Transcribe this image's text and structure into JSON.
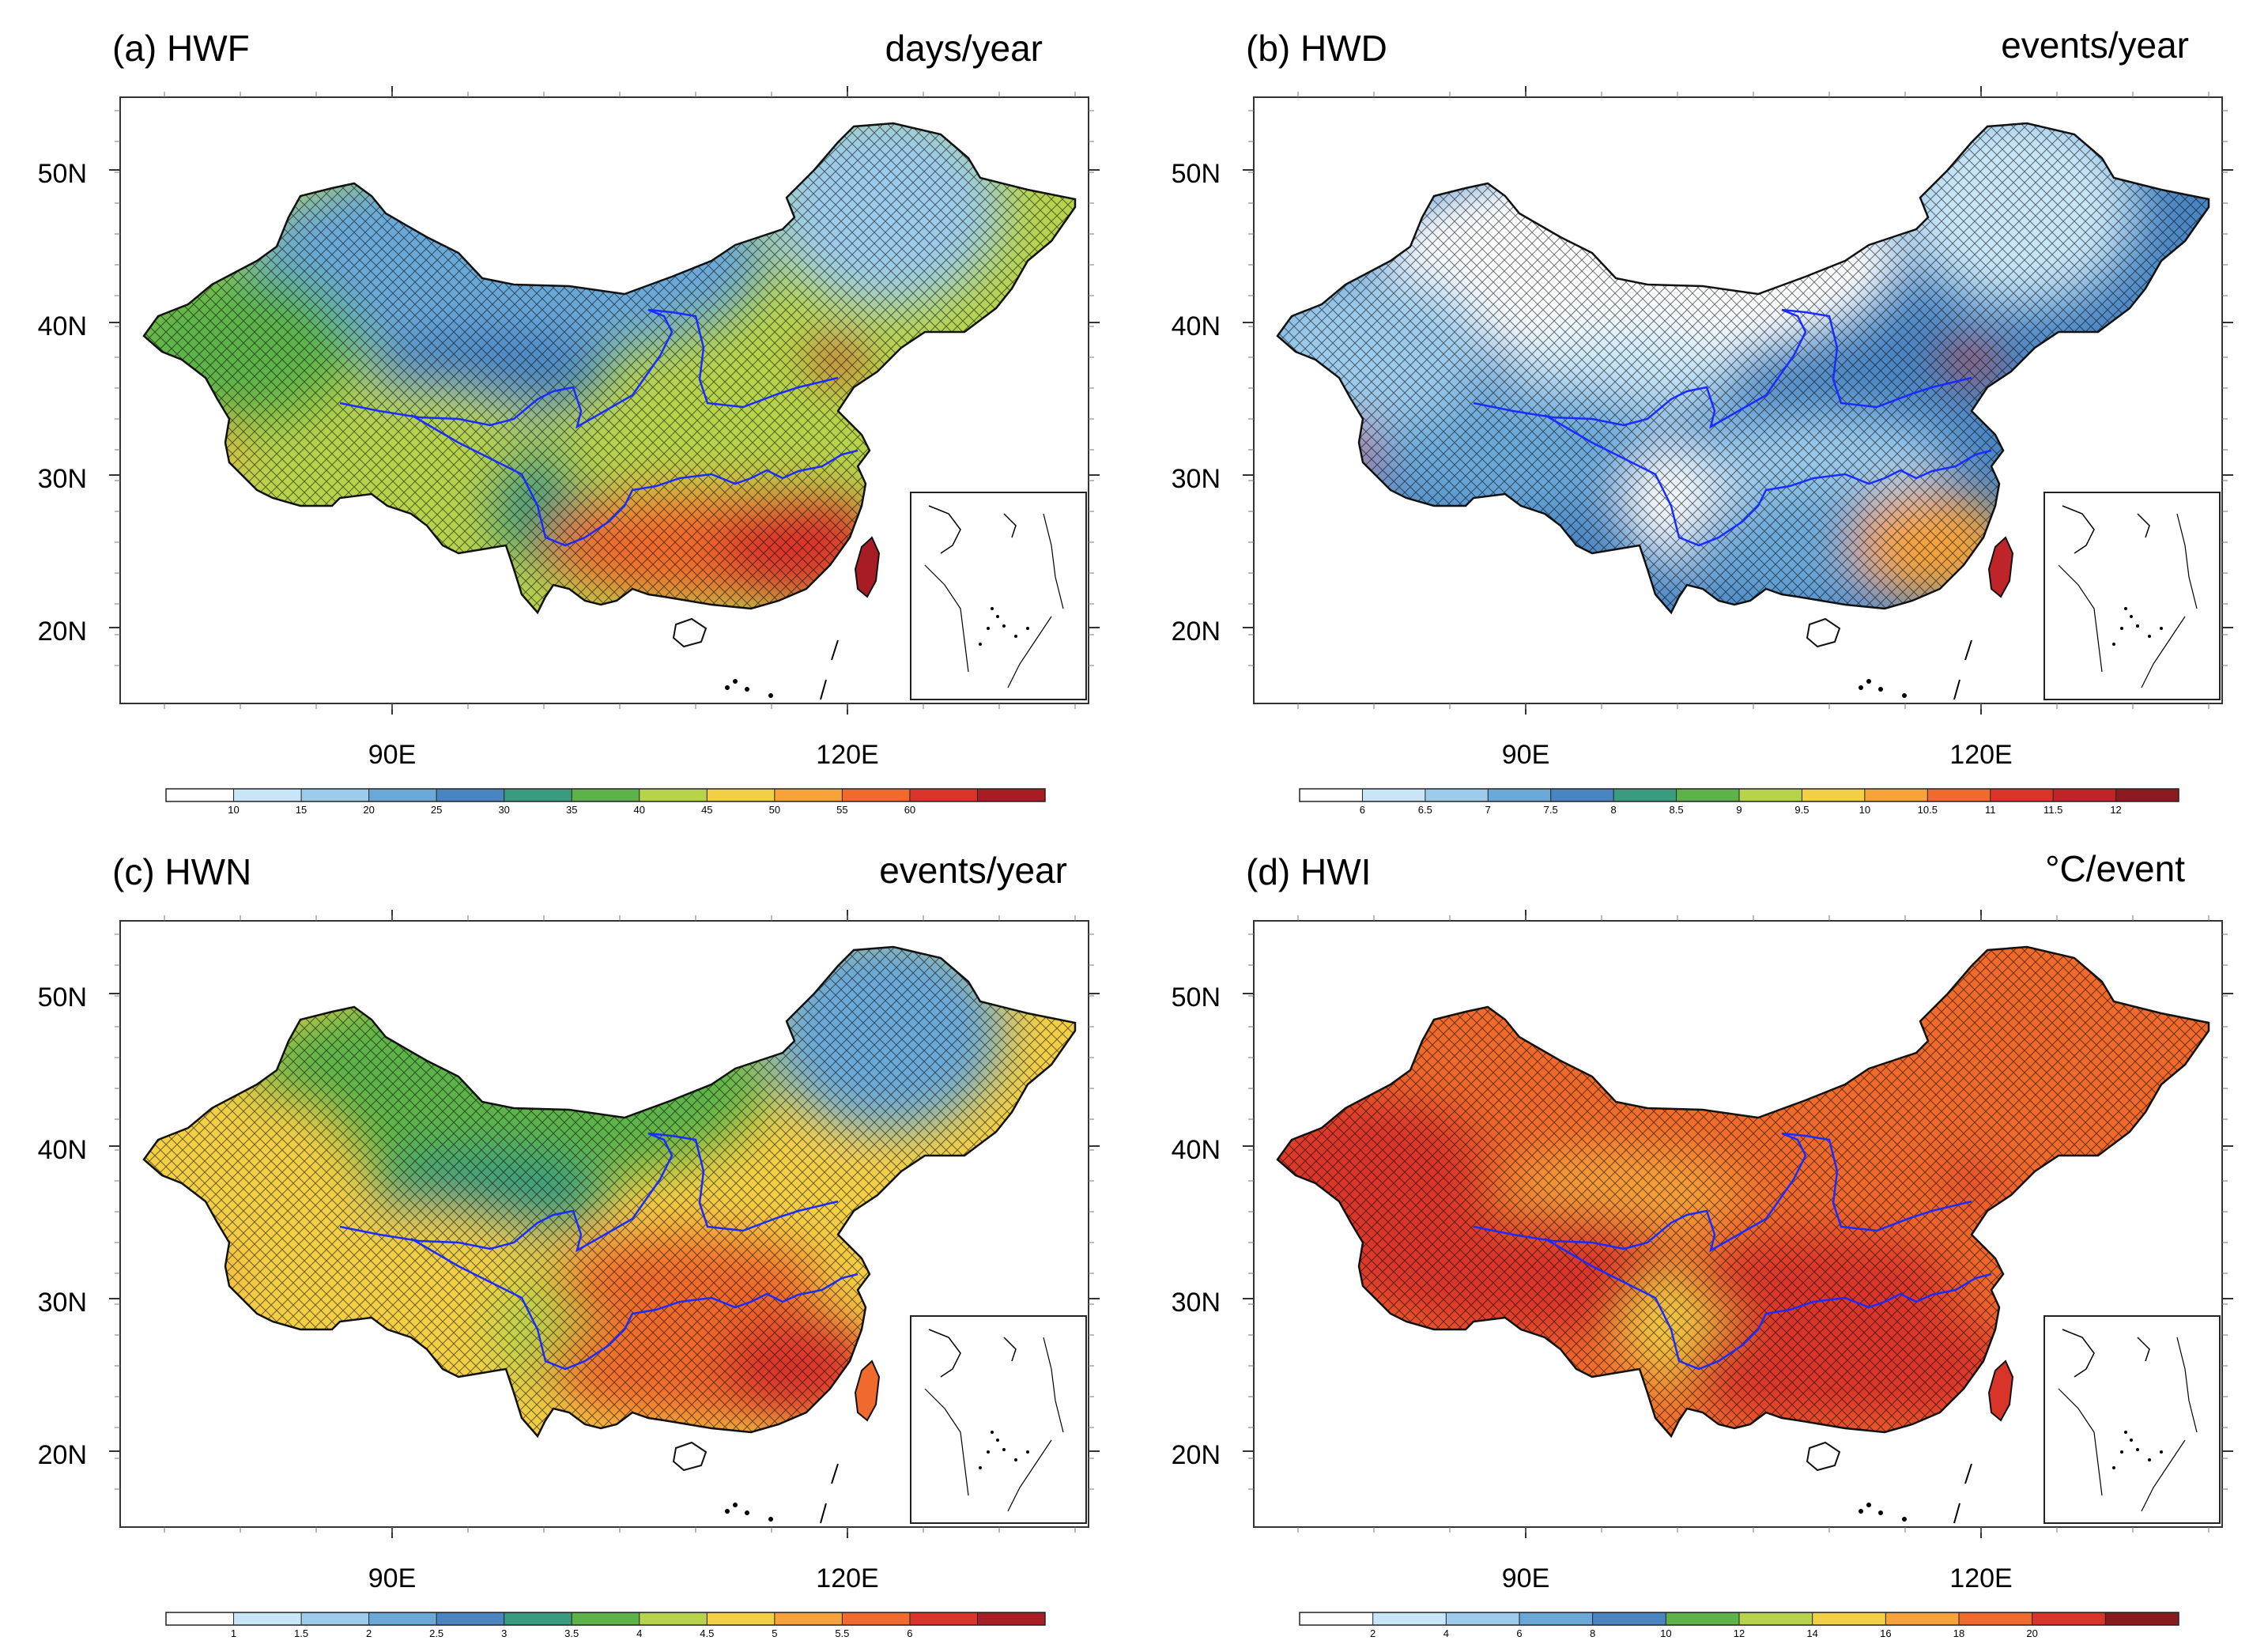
{
  "map": {
    "lat_labels": [
      "50N",
      "40N",
      "30N",
      "20N"
    ],
    "lon_labels": [
      "90E",
      "120E"
    ]
  },
  "panels": [
    {
      "title": "(a) HWF",
      "unit": "days/year",
      "colorbar": [
        "10",
        "15",
        "20",
        "25",
        "30",
        "35",
        "40",
        "45",
        "50",
        "55",
        "60"
      ],
      "colors": [
        "#ffffff",
        "#c8e6f7",
        "#9ccbeb",
        "#6aa8d8",
        "#4a85c2",
        "#3b9b7e",
        "#5db34a",
        "#b7d34b",
        "#f3cf45",
        "#f5a33a",
        "#ef6a2c",
        "#d9342a",
        "#a81d25"
      ],
      "regions": {
        "north": 3,
        "northeast": 2,
        "qaidam": 4,
        "tibet_west": 9,
        "tibet_center": 7,
        "xinjiang_west": 6,
        "sichuan": 5,
        "yangtze": 7,
        "south": 10,
        "southeast": 11,
        "taiwan": 12,
        "shandong": 11
      }
    },
    {
      "title": "(b) HWD",
      "unit": "events/year",
      "colorbar": [
        "6",
        "6.5",
        "7",
        "7.5",
        "8",
        "8.5",
        "9",
        "9.5",
        "10",
        "10.5",
        "11",
        "11.5",
        "12"
      ],
      "colors": [
        "#ffffff",
        "#c8e6f7",
        "#9ccbeb",
        "#6aa8d8",
        "#4a85c2",
        "#3b9b7e",
        "#5db34a",
        "#b7d34b",
        "#f3cf45",
        "#f5a33a",
        "#ef6a2c",
        "#d9342a",
        "#bf2528",
        "#8a1a20"
      ],
      "regions": {
        "north": 0,
        "northeast": 1,
        "qaidam": 1,
        "tibet_west": 11,
        "tibet_center": 3,
        "xinjiang_west": 2,
        "sichuan": 0,
        "yangtze": 2,
        "south": 3,
        "southeast": 9,
        "taiwan": 12,
        "shandong": 11
      }
    },
    {
      "title": "(c) HWN",
      "unit": "events/year",
      "colorbar": [
        "1",
        "1.5",
        "2",
        "2.5",
        "3",
        "3.5",
        "4",
        "4.5",
        "5",
        "5.5",
        "6"
      ],
      "colors": [
        "#ffffff",
        "#c8e6f7",
        "#9ccbeb",
        "#6aa8d8",
        "#4a85c2",
        "#3b9b7e",
        "#5db34a",
        "#b7d34b",
        "#f3cf45",
        "#f5a33a",
        "#ef6a2c",
        "#d9342a",
        "#a81d25"
      ],
      "regions": {
        "north": 6,
        "northeast": 3,
        "qaidam": 5,
        "tibet_west": 9,
        "tibet_center": 8,
        "xinjiang_west": 8,
        "sichuan": 7,
        "yangtze": 10,
        "south": 10,
        "southeast": 11,
        "taiwan": 10,
        "shandong": 8
      }
    },
    {
      "title": "(d) HWI",
      "unit": "°C/event",
      "colorbar": [
        "2",
        "4",
        "6",
        "8",
        "10",
        "12",
        "14",
        "16",
        "18",
        "20"
      ],
      "colors": [
        "#ffffff",
        "#c8e6f7",
        "#9ccbeb",
        "#6aa8d8",
        "#4a85c2",
        "#5db34a",
        "#b7d34b",
        "#f3cf45",
        "#f5a33a",
        "#ef6a2c",
        "#d9342a",
        "#8a1a20"
      ],
      "regions": {
        "north": 9,
        "northeast": 9,
        "qaidam": 8,
        "tibet_west": 10,
        "tibet_center": 10,
        "xinjiang_west": 10,
        "sichuan": 7,
        "yangtze": 10,
        "south": 10,
        "southeast": 10,
        "taiwan": 10,
        "shandong": 10
      }
    }
  ]
}
